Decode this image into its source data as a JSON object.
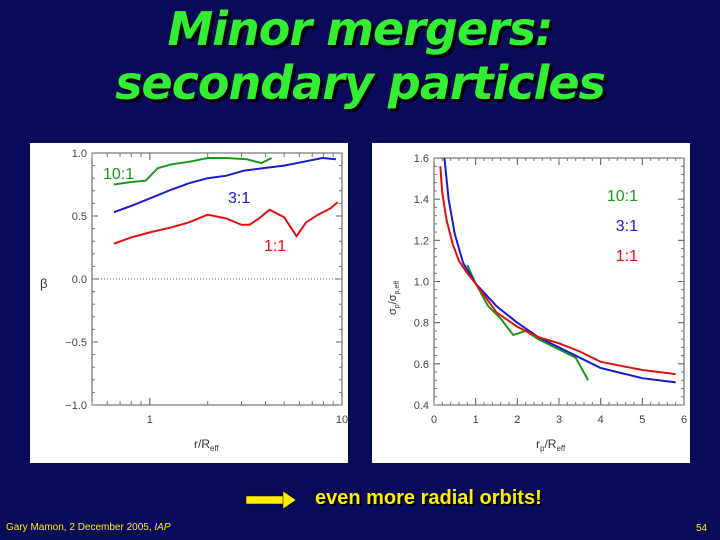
{
  "slide": {
    "title_line1": "Minor mergers:",
    "title_line2": "secondary particles",
    "conclusion": "even more radial orbits!",
    "footer_author": "Gary Mamon, 2 December 2005,",
    "footer_institute": "IAP",
    "page_number": "54",
    "colors": {
      "background": "#0a0a5a",
      "title": "#33ee33",
      "accent": "#ffee00"
    }
  },
  "chart_data": [
    {
      "type": "line",
      "xscale": "log",
      "xlim": [
        0.5,
        10
      ],
      "ylim": [
        -1.0,
        1.0
      ],
      "ylabel": "β",
      "xlabel_main": "r/R",
      "xlabel_sub": "eff",
      "yticks": [
        "1.0",
        "0.5",
        "0.0",
        "−0.5",
        "−1.0"
      ],
      "ytick_values": [
        1.0,
        0.5,
        0.0,
        -0.5,
        -1.0
      ],
      "xticks": [
        "1",
        "10"
      ],
      "xtick_values": [
        1,
        10
      ],
      "reference_line": 0.0,
      "series": [
        {
          "name": "10:1",
          "color": "#1a9a1a",
          "x": [
            0.65,
            0.8,
            0.95,
            1.1,
            1.3,
            1.6,
            2.0,
            2.5,
            3.2,
            3.8,
            4.3
          ],
          "y": [
            0.75,
            0.77,
            0.78,
            0.88,
            0.91,
            0.93,
            0.96,
            0.96,
            0.95,
            0.92,
            0.96
          ]
        },
        {
          "name": "3:1",
          "color": "#1a1ad0",
          "x": [
            0.65,
            0.8,
            1.0,
            1.3,
            1.6,
            2.0,
            2.5,
            3.1,
            3.9,
            5.0,
            6.3,
            7.9,
            9.3
          ],
          "y": [
            0.53,
            0.58,
            0.64,
            0.71,
            0.76,
            0.8,
            0.82,
            0.86,
            0.88,
            0.9,
            0.93,
            0.96,
            0.95
          ]
        },
        {
          "name": "1:1",
          "color": "#e01010",
          "x": [
            0.65,
            0.8,
            1.0,
            1.3,
            1.6,
            2.0,
            2.5,
            3.0,
            3.3,
            3.7,
            4.2,
            5.0,
            5.8,
            6.5,
            7.5,
            8.7,
            9.5
          ],
          "y": [
            0.28,
            0.33,
            0.37,
            0.41,
            0.45,
            0.51,
            0.48,
            0.43,
            0.43,
            0.48,
            0.55,
            0.49,
            0.34,
            0.45,
            0.51,
            0.56,
            0.61
          ]
        }
      ]
    },
    {
      "type": "line",
      "xlim": [
        0,
        6
      ],
      "ylim": [
        0.4,
        1.6
      ],
      "ylabel_main": "σ",
      "ylabel_sub1": "p",
      "ylabel_sub2": "p,eff",
      "xlabel_main": "r",
      "xlabel_sub1": "p",
      "xlabel_sub2": "eff",
      "yticks": [
        "1.6",
        "1.4",
        "1.2",
        "1.0",
        "0.8",
        "0.6",
        "0.4"
      ],
      "ytick_values": [
        1.6,
        1.4,
        1.2,
        1.0,
        0.8,
        0.6,
        0.4
      ],
      "xticks": [
        "0",
        "1",
        "2",
        "3",
        "4",
        "5",
        "6"
      ],
      "xtick_values": [
        0,
        1,
        2,
        3,
        4,
        5,
        6
      ],
      "series": [
        {
          "name": "10:1",
          "color": "#1a9a1a",
          "x": [
            0.8,
            1.0,
            1.3,
            1.6,
            1.9,
            2.2,
            2.5,
            2.8,
            3.1,
            3.4,
            3.7
          ],
          "y": [
            1.08,
            0.99,
            0.88,
            0.82,
            0.74,
            0.76,
            0.72,
            0.69,
            0.66,
            0.63,
            0.52
          ]
        },
        {
          "name": "3:1",
          "color": "#1a1ad0",
          "x": [
            0.25,
            0.35,
            0.5,
            0.7,
            1.0,
            1.5,
            2.0,
            2.5,
            3.0,
            3.5,
            4.0,
            5.0,
            5.8
          ],
          "y": [
            1.6,
            1.4,
            1.23,
            1.09,
            0.99,
            0.88,
            0.8,
            0.73,
            0.68,
            0.63,
            0.58,
            0.53,
            0.51
          ]
        },
        {
          "name": "1:1",
          "color": "#e01010",
          "x": [
            0.15,
            0.2,
            0.3,
            0.45,
            0.6,
            0.8,
            1.0,
            1.5,
            2.0,
            2.5,
            3.0,
            3.5,
            4.0,
            5.0,
            5.8
          ],
          "y": [
            1.56,
            1.43,
            1.3,
            1.18,
            1.1,
            1.04,
            0.99,
            0.85,
            0.78,
            0.73,
            0.7,
            0.66,
            0.61,
            0.57,
            0.55
          ]
        }
      ]
    }
  ]
}
